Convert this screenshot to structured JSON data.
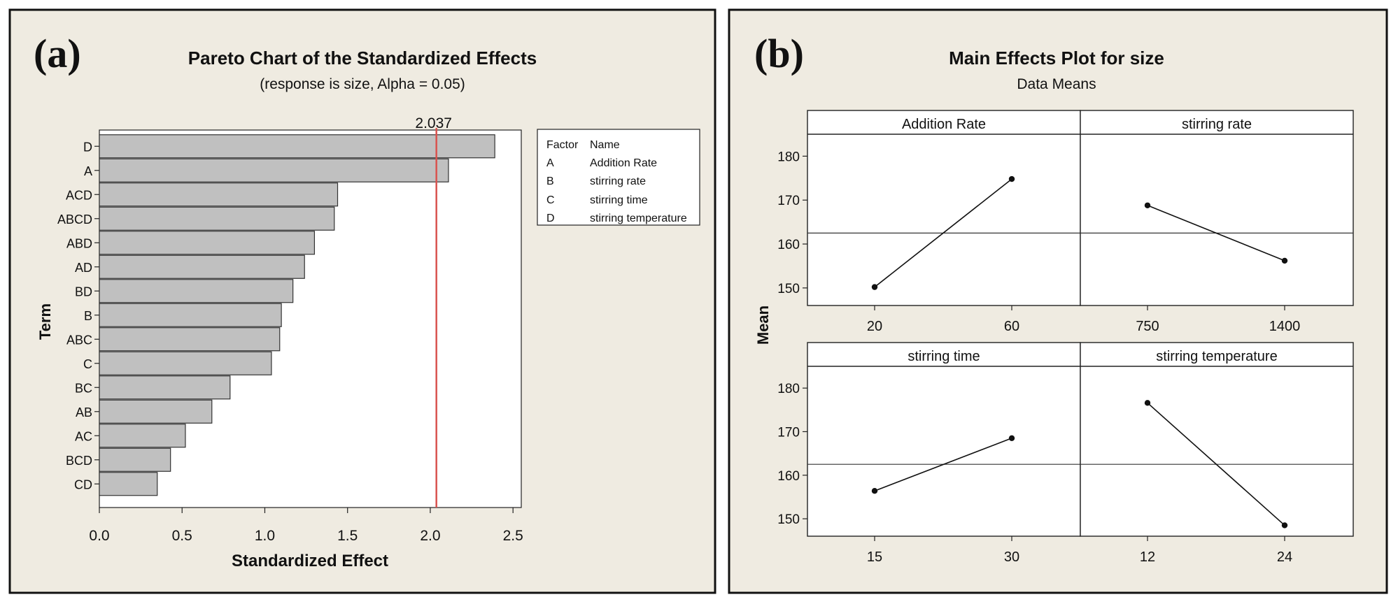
{
  "panels": {
    "a": {
      "letter": "(a)",
      "title": "Pareto Chart of the Standardized Effects",
      "subtitle": "(response is size, Alpha = 0.05)"
    },
    "b": {
      "letter": "(b)",
      "title": "Main Effects Plot for size",
      "subtitle": "Data Means"
    }
  },
  "chart_data": [
    {
      "type": "bar",
      "orientation": "horizontal",
      "title": "Pareto Chart of the Standardized Effects",
      "subtitle": "(response is size, Alpha = 0.05)",
      "xlabel": "Standardized Effect",
      "ylabel": "Term",
      "xlim": [
        0,
        2.55
      ],
      "xticks": [
        "0.0",
        "0.5",
        "1.0",
        "1.5",
        "2.0",
        "2.5"
      ],
      "categories": [
        "D",
        "A",
        "ACD",
        "ABCD",
        "ABD",
        "AD",
        "BD",
        "B",
        "ABC",
        "C",
        "BC",
        "AB",
        "AC",
        "BCD",
        "CD"
      ],
      "values": [
        2.39,
        2.11,
        1.44,
        1.42,
        1.3,
        1.24,
        1.17,
        1.1,
        1.09,
        1.04,
        0.79,
        0.68,
        0.52,
        0.43,
        0.35
      ],
      "reference_line": {
        "value": 2.037,
        "label": "2.037",
        "color": "#d9534f"
      },
      "bar_color": "#c0c0c0",
      "legend": {
        "headers": [
          "Factor",
          "Name"
        ],
        "rows": [
          [
            "A",
            "Addition Rate"
          ],
          [
            "B",
            "stirring rate"
          ],
          [
            "C",
            "stirring time"
          ],
          [
            "D",
            "stirring temperature"
          ]
        ]
      }
    },
    {
      "type": "line",
      "title": "Main Effects Plot for size",
      "subtitle": "Data Means",
      "ylabel": "Mean",
      "ylim": [
        146,
        185
      ],
      "yticks": [
        "150",
        "160",
        "170",
        "180"
      ],
      "grand_mean": 162.5,
      "panels": [
        {
          "name": "Addition Rate",
          "x": [
            "20",
            "60"
          ],
          "y": [
            150.2,
            174.8
          ]
        },
        {
          "name": "stirring rate",
          "x": [
            "750",
            "1400"
          ],
          "y": [
            168.8,
            156.2
          ]
        },
        {
          "name": "stirring time",
          "x": [
            "15",
            "30"
          ],
          "y": [
            156.4,
            168.5
          ]
        },
        {
          "name": "stirring temperature",
          "x": [
            "12",
            "24"
          ],
          "y": [
            176.6,
            148.5
          ]
        }
      ]
    }
  ]
}
